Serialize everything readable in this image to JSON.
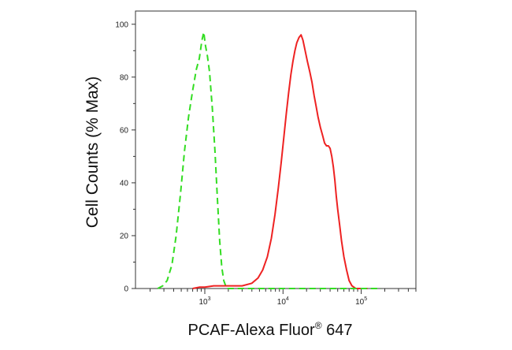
{
  "chart_data": {
    "type": "line",
    "xlabel_main": "PCAF-Alexa Fluor",
    "xlabel_reg": "®",
    "xlabel_tail": " 647",
    "ylabel": "Cell Counts (% Max)",
    "x_scale": "log",
    "xlim": [
      130,
      500000
    ],
    "ylim": [
      0,
      105
    ],
    "y_ticks": [
      0,
      20,
      40,
      60,
      80,
      100
    ],
    "x_major_ticks": [
      {
        "value": 1000,
        "base": "10",
        "exp": "3"
      },
      {
        "value": 10000,
        "base": "10",
        "exp": "4"
      },
      {
        "value": 100000,
        "base": "10",
        "exp": "5"
      }
    ],
    "series": [
      {
        "color": "#33dd22",
        "style": "dashed",
        "points": [
          [
            250,
            0
          ],
          [
            290,
            1
          ],
          [
            330,
            3
          ],
          [
            380,
            9
          ],
          [
            430,
            20
          ],
          [
            490,
            36
          ],
          [
            550,
            52
          ],
          [
            620,
            65
          ],
          [
            700,
            75
          ],
          [
            780,
            83
          ],
          [
            850,
            87
          ],
          [
            920,
            94
          ],
          [
            970,
            97
          ],
          [
            1020,
            92
          ],
          [
            1080,
            88
          ],
          [
            1150,
            82
          ],
          [
            1250,
            68
          ],
          [
            1350,
            52
          ],
          [
            1450,
            34
          ],
          [
            1550,
            18
          ],
          [
            1650,
            8
          ],
          [
            1750,
            3
          ],
          [
            1850,
            1
          ],
          [
            1950,
            0
          ]
        ]
      },
      {
        "color": "#ee2222",
        "style": "solid",
        "points": [
          [
            700,
            0
          ],
          [
            850,
            0.5
          ],
          [
            1000,
            0.5
          ],
          [
            1300,
            1
          ],
          [
            2000,
            1
          ],
          [
            3000,
            1
          ],
          [
            4000,
            2
          ],
          [
            4800,
            4
          ],
          [
            5500,
            7
          ],
          [
            6300,
            12
          ],
          [
            7100,
            19
          ],
          [
            7900,
            28
          ],
          [
            8700,
            38
          ],
          [
            9500,
            48
          ],
          [
            10300,
            58
          ],
          [
            11000,
            66
          ],
          [
            11800,
            74
          ],
          [
            12600,
            81
          ],
          [
            13400,
            86
          ],
          [
            14200,
            90
          ],
          [
            15000,
            93
          ],
          [
            16000,
            95
          ],
          [
            17000,
            96
          ],
          [
            18000,
            94
          ],
          [
            19200,
            90
          ],
          [
            20500,
            86
          ],
          [
            22000,
            82
          ],
          [
            23500,
            78
          ],
          [
            25000,
            73
          ],
          [
            26500,
            69
          ],
          [
            28000,
            65
          ],
          [
            30000,
            61
          ],
          [
            32000,
            58
          ],
          [
            34000,
            55
          ],
          [
            36000,
            54
          ],
          [
            38000,
            54
          ],
          [
            40000,
            53
          ],
          [
            42000,
            50
          ],
          [
            44000,
            46
          ],
          [
            46000,
            41
          ],
          [
            48000,
            35
          ],
          [
            50000,
            30
          ],
          [
            53000,
            24
          ],
          [
            56000,
            18
          ],
          [
            60000,
            12
          ],
          [
            65000,
            7
          ],
          [
            70000,
            3
          ],
          [
            76000,
            1
          ],
          [
            85000,
            0
          ],
          [
            120000,
            0
          ]
        ]
      }
    ]
  }
}
